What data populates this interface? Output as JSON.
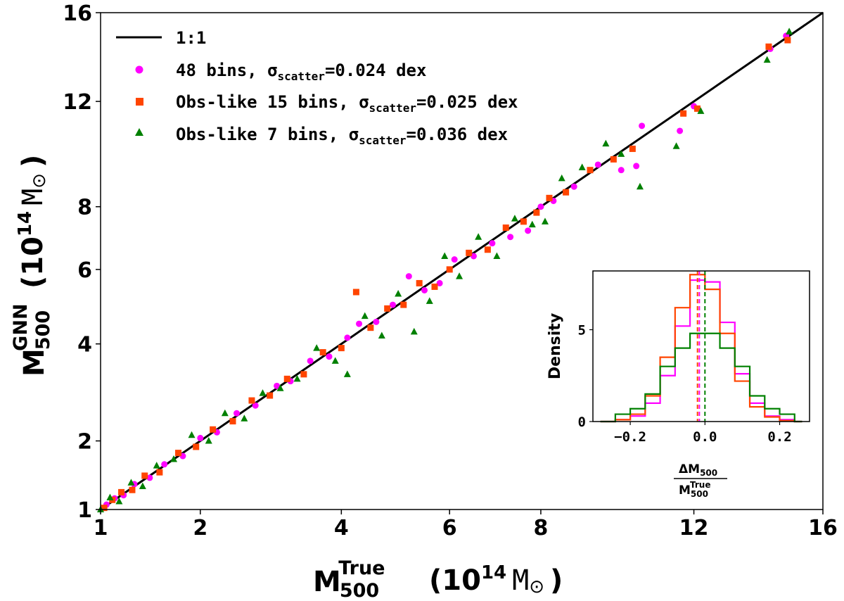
{
  "chart_data": [
    {
      "type": "scatter",
      "title": "",
      "xlabel": {
        "symbol": "M",
        "sub": "500",
        "sup": "True",
        "unit_prefix": "(10",
        "unit_exp": "14",
        "unit_body": "M",
        "unit_sym": "⊙",
        "unit_close": ")"
      },
      "ylabel": {
        "symbol": "M",
        "sub": "500",
        "sup": "GNN",
        "unit_prefix": "(10",
        "unit_exp": "14",
        "unit_body": "M",
        "unit_sym": "⊙",
        "unit_close": ")"
      },
      "xlim": [
        1,
        16
      ],
      "ylim": [
        1,
        16
      ],
      "xticks": [
        1,
        2,
        4,
        6,
        8,
        12,
        16
      ],
      "yticks": [
        1,
        2,
        4,
        6,
        8,
        12,
        16
      ],
      "scale": "sqrt",
      "grid": false,
      "legend_placement": "top-left",
      "reference_line": {
        "label": "1:1",
        "color": "#000000"
      },
      "series": [
        {
          "name": "48 bins, σ",
          "name_sub": "scatter",
          "name_tail": "=0.024 dex",
          "marker": "circle",
          "color": "#ff00ff",
          "x": [
            1.05,
            1.12,
            1.2,
            1.3,
            1.45,
            1.6,
            1.8,
            2.0,
            2.2,
            2.45,
            2.7,
            3.0,
            3.2,
            3.5,
            3.8,
            4.1,
            4.3,
            4.6,
            4.9,
            5.2,
            5.5,
            5.8,
            6.1,
            6.5,
            6.9,
            7.3,
            7.7,
            8.0,
            8.3,
            8.8,
            9.4,
            10.0,
            10.4,
            10.55,
            11.6,
            12.0,
            14.3,
            14.8
          ],
          "y": [
            1.06,
            1.14,
            1.18,
            1.33,
            1.42,
            1.62,
            1.75,
            2.05,
            2.15,
            2.5,
            2.65,
            3.05,
            3.15,
            3.6,
            3.7,
            4.15,
            4.5,
            4.55,
            5.0,
            5.8,
            5.4,
            5.6,
            6.3,
            6.4,
            6.8,
            7.0,
            7.2,
            8.0,
            8.2,
            8.7,
            9.5,
            9.3,
            9.45,
            11.0,
            10.8,
            11.8,
            14.3,
            14.9
          ]
        },
        {
          "name": "Obs-like 15 bins, σ",
          "name_sub": "scatter",
          "name_tail": "=0.025 dex",
          "marker": "square",
          "color": "#ff4500",
          "x": [
            1.03,
            1.1,
            1.18,
            1.28,
            1.4,
            1.55,
            1.75,
            1.95,
            2.15,
            2.4,
            2.65,
            2.9,
            3.15,
            3.4,
            3.7,
            4.0,
            4.25,
            4.5,
            4.8,
            5.1,
            5.4,
            5.7,
            6.0,
            6.4,
            6.8,
            7.2,
            7.6,
            7.9,
            8.2,
            8.6,
            9.2,
            9.8,
            10.3,
            11.7,
            12.1,
            14.25,
            14.85
          ],
          "y": [
            1.02,
            1.12,
            1.22,
            1.25,
            1.45,
            1.5,
            1.8,
            1.9,
            2.2,
            2.35,
            2.75,
            2.85,
            3.2,
            3.3,
            3.8,
            3.9,
            5.35,
            4.4,
            4.9,
            5.0,
            5.6,
            5.5,
            6.0,
            6.5,
            6.6,
            7.3,
            7.5,
            7.8,
            8.3,
            8.5,
            9.3,
            9.7,
            10.1,
            11.5,
            11.7,
            14.4,
            14.7
          ]
        },
        {
          "name": "Obs-like 7 bins, σ",
          "name_sub": "scatter",
          "name_tail": "=0.036 dex",
          "marker": "triangle",
          "color": "#008000",
          "x": [
            1.0,
            1.08,
            1.16,
            1.27,
            1.38,
            1.52,
            1.7,
            1.9,
            2.1,
            2.3,
            2.55,
            2.8,
            3.05,
            3.3,
            3.6,
            3.9,
            4.1,
            4.4,
            4.7,
            5.0,
            5.3,
            5.6,
            5.9,
            6.2,
            6.6,
            7.0,
            7.4,
            7.8,
            8.1,
            8.5,
            9.0,
            9.6,
            10.0,
            10.5,
            11.5,
            12.2,
            14.2,
            14.9
          ],
          "y": [
            1.0,
            1.15,
            1.1,
            1.35,
            1.3,
            1.6,
            1.7,
            2.1,
            2.0,
            2.5,
            2.4,
            2.9,
            3.0,
            3.2,
            3.9,
            3.6,
            3.3,
            4.7,
            4.2,
            5.3,
            4.3,
            5.1,
            6.4,
            5.8,
            7.0,
            6.4,
            7.6,
            7.4,
            7.5,
            9.0,
            9.4,
            10.3,
            9.9,
            8.7,
            10.2,
            11.6,
            13.8,
            15.1
          ]
        }
      ]
    },
    {
      "type": "histogram",
      "title": "",
      "xlabel": {
        "num": "ΔM",
        "num_sub": "500",
        "den": "M",
        "den_sub": "500",
        "den_sup": "True"
      },
      "ylabel": "Density",
      "xlim": [
        -0.3,
        0.28
      ],
      "ylim": [
        0,
        8.2
      ],
      "xticks": [
        -0.2,
        0.0,
        0.2
      ],
      "xtick_labels": [
        "−0.2",
        "0.0",
        "0.2"
      ],
      "yticks": [
        0,
        5
      ],
      "bin_edges": [
        -0.28,
        -0.24,
        -0.2,
        -0.16,
        -0.12,
        -0.08,
        -0.04,
        0.0,
        0.04,
        0.08,
        0.12,
        0.16,
        0.2,
        0.24,
        0.26
      ],
      "series": [
        {
          "name": "48 bins",
          "color": "#ff00ff",
          "counts": [
            0.0,
            0.1,
            0.3,
            1.0,
            2.5,
            5.2,
            7.7,
            7.6,
            5.4,
            2.6,
            1.0,
            0.3,
            0.1,
            0.0
          ],
          "median": -0.015
        },
        {
          "name": "Obs-like 15 bins",
          "color": "#ff4500",
          "counts": [
            0.0,
            0.1,
            0.4,
            1.4,
            3.5,
            6.2,
            8.0,
            7.2,
            4.8,
            2.2,
            0.8,
            0.25,
            0.05,
            0.0
          ],
          "median": -0.02
        },
        {
          "name": "Obs-like 7 bins",
          "color": "#008000",
          "counts": [
            0.0,
            0.4,
            0.7,
            1.5,
            3.0,
            4.0,
            4.8,
            4.8,
            4.0,
            3.0,
            1.4,
            0.7,
            0.4,
            0.0
          ],
          "median": 0.0
        }
      ],
      "median_line_style": "dashed"
    }
  ]
}
